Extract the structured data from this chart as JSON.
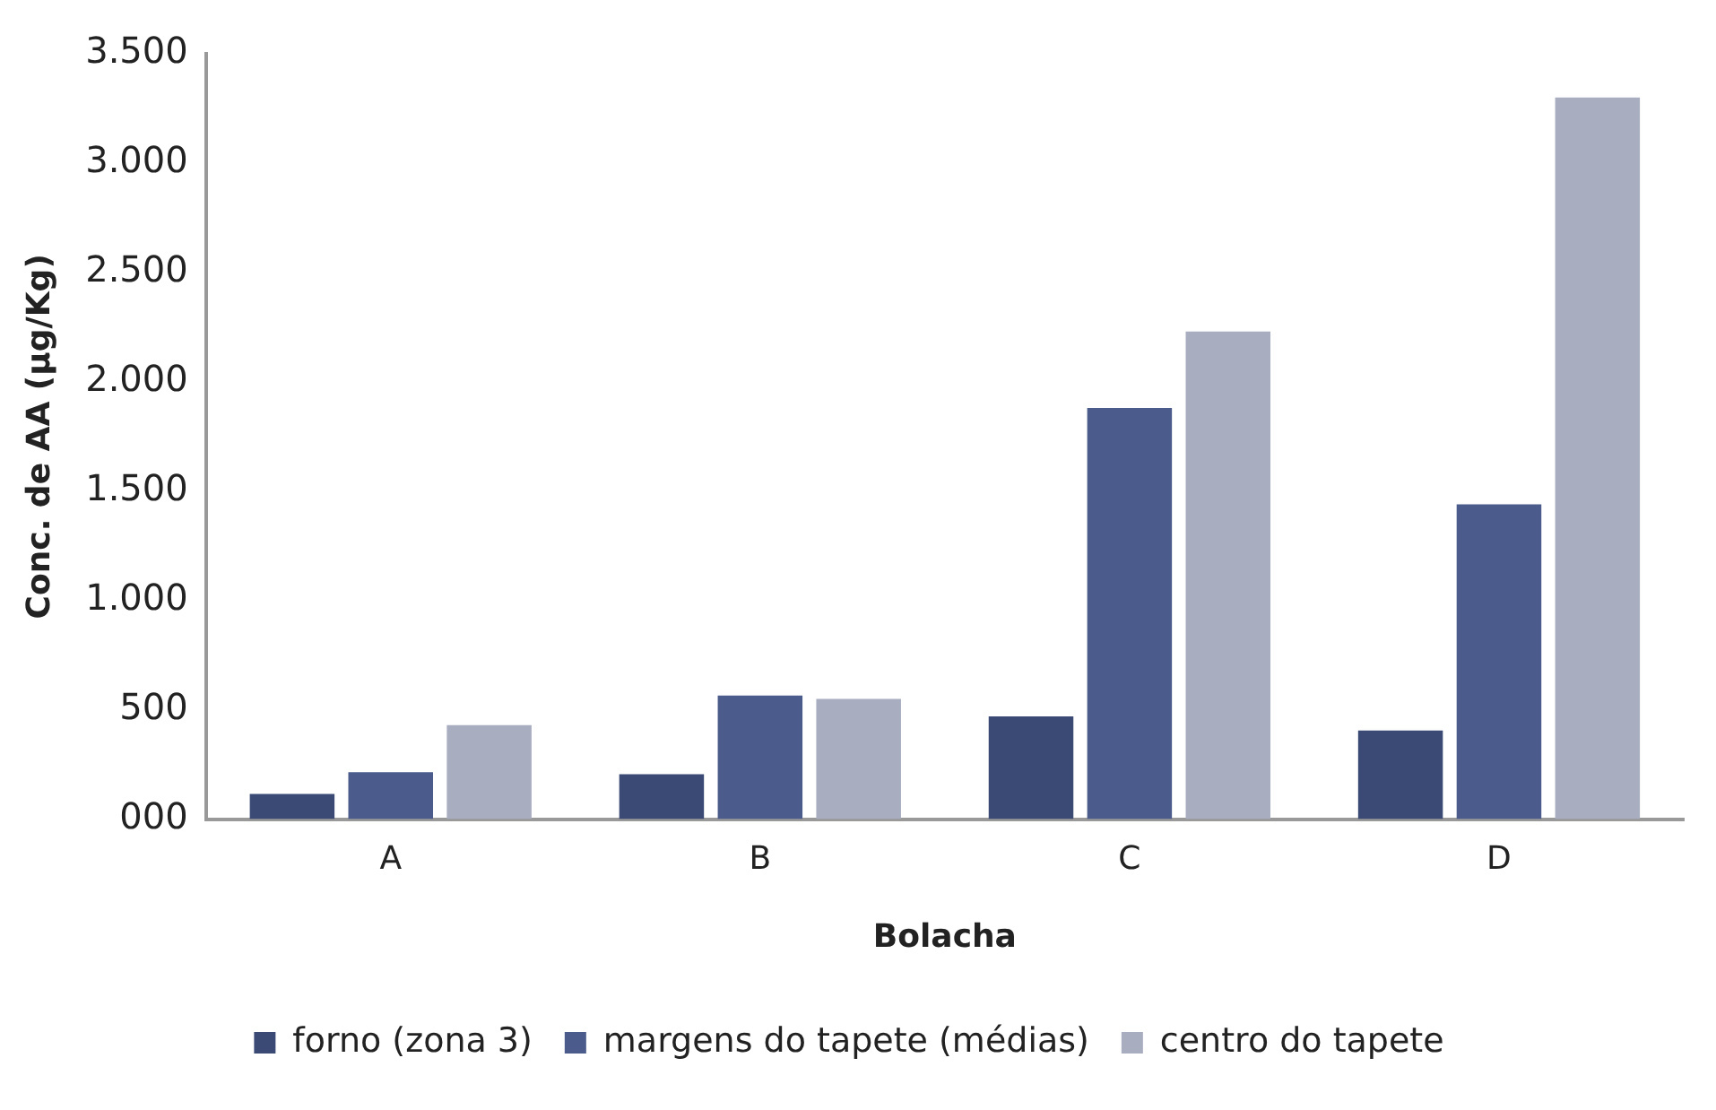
{
  "chart_data": {
    "type": "bar",
    "xlabel": "Bolacha",
    "ylabel": "Conc. de AA (µg/Kg)",
    "categories": [
      "A",
      "B",
      "C",
      "D"
    ],
    "series": [
      {
        "name": "forno (zona 3)",
        "color": "#3b4a75",
        "values": [
          115,
          205,
          470,
          405
        ]
      },
      {
        "name": "margens do tapete (médias)",
        "color": "#4a5b8c",
        "values": [
          215,
          565,
          1880,
          1440
        ]
      },
      {
        "name": "centro do tapete",
        "color": "#a8adc0",
        "values": [
          430,
          550,
          2230,
          3300
        ]
      }
    ],
    "ylim": [
      0,
      3500
    ],
    "yticks": [
      {
        "value": 0,
        "label": "000"
      },
      500,
      {
        "value": 1000,
        "label": "1.000"
      },
      {
        "value": 1500,
        "label": "1.500"
      },
      {
        "value": 2000,
        "label": "2.000"
      },
      {
        "value": 2500,
        "label": "2.500"
      },
      {
        "value": 3000,
        "label": "3.000"
      },
      {
        "value": 3500,
        "label": "3.500"
      }
    ],
    "grid": false,
    "legend": "bottom"
  }
}
